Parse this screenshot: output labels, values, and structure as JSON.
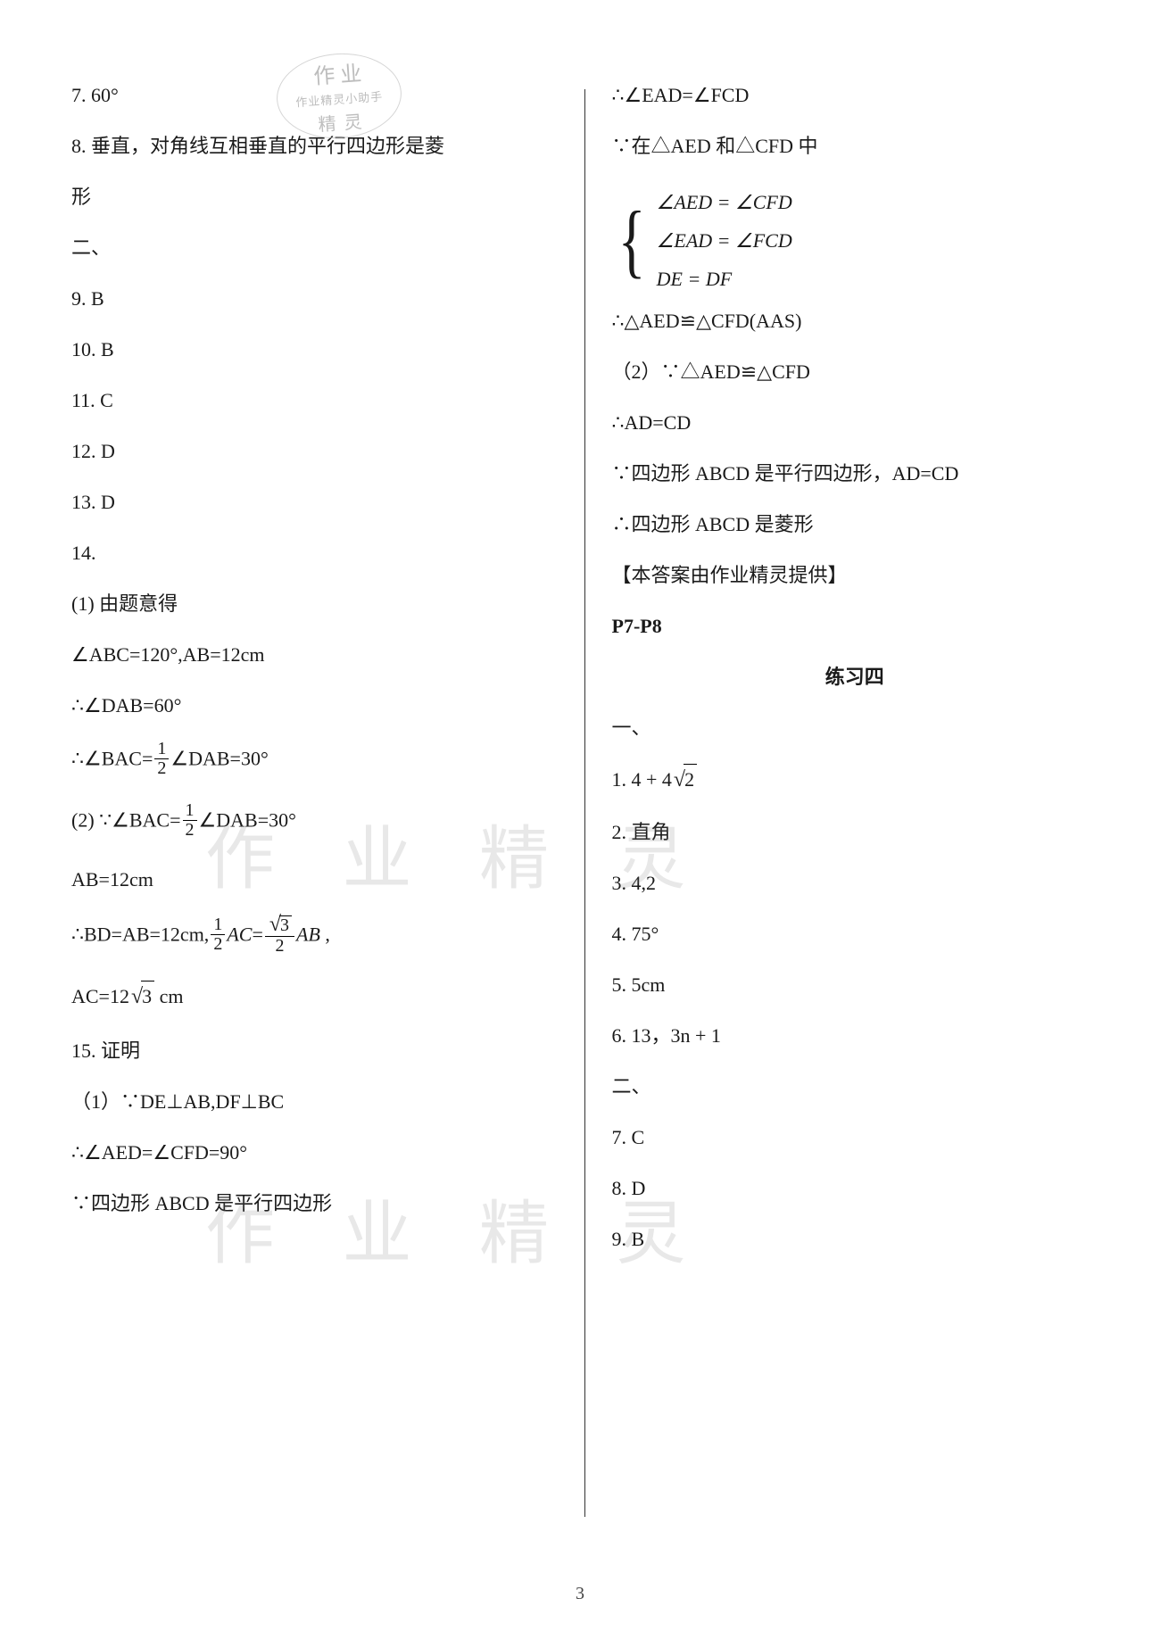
{
  "stamp": {
    "top": "作 业",
    "mid": "作业精灵小助手",
    "bot": "精 灵"
  },
  "watermark": "作 业 精 灵",
  "page_number": "3",
  "left": {
    "l7": "7.  60°",
    "l8a": "8.  垂直，对角线互相垂直的平行四边形是菱",
    "l8b": "形",
    "sec2": "二、",
    "l9": "9.  B",
    "l10": "10.  B",
    "l11": "11.  C",
    "l12": "12.  D",
    "l13": "13.  D",
    "l14": "14.",
    "l14a": "(1)  由题意得",
    "angle_abc": "∠ABC=120°,AB=12cm",
    "dab": "∴∠DAB=60°",
    "bac_pre": "∴∠BAC=",
    "bac_post": "∠DAB=30°",
    "p2_pre": "(2)  ∵∠BAC=",
    "p2_post": "∠DAB=30°",
    "ab12": "AB=12cm",
    "bd_pre": "∴BD=AB=12cm,",
    "ac_mid": "AC",
    "eq": "=",
    "ab_txt": "AB",
    "comma": " ,",
    "ac_final_pre": "AC=",
    "ac_final_num": "12",
    "ac_final_post": " cm",
    "l15": "15.      证明",
    "l15a": "（1）∵DE⊥AB,DF⊥BC",
    "aed90": "∴∠AED=∠CFD=90°",
    "abcd_para": "∵四边形 ABCD 是平行四边形",
    "frac_half_n": "1",
    "frac_half_d": "2",
    "sqrt3": "3"
  },
  "right": {
    "ead_fcd": "∴∠EAD=∠FCD",
    "in_tri": "∵在△AED 和△CFD 中",
    "sys1": "∠AED = ∠CFD",
    "sys2": "∠EAD = ∠FCD",
    "sys3": "DE = DF",
    "cong1": "∴△AED≌△CFD(AAS)",
    "p2": "（2）∵△AED≌△CFD",
    "adcd": "∴AD=CD",
    "para_adcd": "∵四边形 ABCD 是平行四边形，AD=CD",
    "rhombus": "∴四边形 ABCD 是菱形",
    "credit": "【本答案由作业精灵提供】",
    "p78": "P7-P8",
    "ex4": "练习四",
    "sec1": "一、",
    "r1pre": "1.   ",
    "r1num": "4 + 4",
    "r1sqrt": "2",
    "r2": "2.  直角",
    "r3": "3.  4,2",
    "r4": "4.  75°",
    "r5": "5.  5cm",
    "r6pre": "6.  13，",
    "r6expr": "3n + 1",
    "sec2": "二、",
    "r7": "7.  C",
    "r8": "8.  D",
    "r9": "9.  B"
  }
}
